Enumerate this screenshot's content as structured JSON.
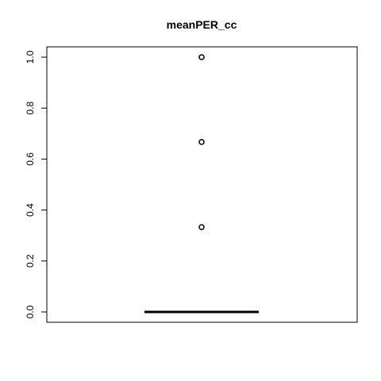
{
  "chart_data": {
    "type": "box",
    "title": "meanPER_cc",
    "xlabel": "",
    "ylabel": "",
    "ylim": [
      -0.04,
      1.04
    ],
    "yticks": [
      0.0,
      0.2,
      0.4,
      0.6,
      0.8,
      1.0
    ],
    "ytick_labels": [
      "0.0",
      "0.2",
      "0.4",
      "0.6",
      "0.8",
      "1.0"
    ],
    "box": {
      "min": 0.0,
      "q1": 0.0,
      "median": 0.0,
      "q3": 0.0,
      "max": 0.0
    },
    "outliers": [
      1.0,
      0.667,
      0.333
    ],
    "grid": false,
    "colors": {
      "stroke": "#000000",
      "background": "#ffffff"
    }
  }
}
